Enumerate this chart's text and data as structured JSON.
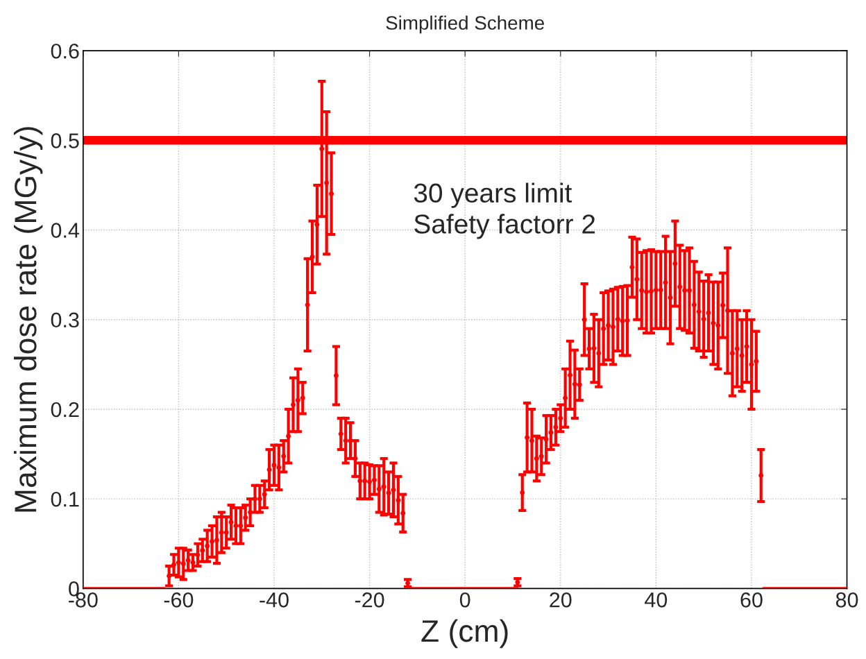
{
  "chart_data": {
    "type": "scatter",
    "title": "Simplified Scheme",
    "xlabel": "Z (cm)",
    "ylabel": "Maximum dose rate (MGy/y)",
    "xlim": [
      -80,
      80
    ],
    "xticks": [
      -80,
      -60,
      -40,
      -20,
      0,
      20,
      40,
      60,
      80
    ],
    "ylim": [
      0,
      0.6
    ],
    "yticks": [
      0,
      0.1,
      0.2,
      0.3,
      0.4,
      0.5,
      0.6
    ],
    "grid": true,
    "marker": "none",
    "series": [
      {
        "color": "#ff0000",
        "x": [
          -62,
          -61,
          -60,
          -59,
          -58,
          -57,
          -56,
          -55,
          -54,
          -53,
          -52,
          -51,
          -50,
          -49,
          -48,
          -47,
          -46,
          -45,
          -44,
          -43,
          -42,
          -41,
          -40,
          -39,
          -38,
          -37,
          -36,
          -35,
          -34,
          -33,
          -32,
          -31,
          -30,
          -29,
          -28,
          -27,
          -26,
          -25,
          -24,
          -23,
          -22,
          -21,
          -20,
          -19,
          -18,
          -17,
          -16,
          -15,
          -14,
          -13,
          -12,
          11,
          12,
          13,
          14,
          15,
          16,
          17,
          18,
          19,
          20,
          21,
          22,
          23,
          24,
          25,
          26,
          27,
          28,
          29,
          30,
          31,
          32,
          33,
          34,
          35,
          36,
          37,
          38,
          39,
          40,
          41,
          42,
          43,
          44,
          45,
          46,
          47,
          48,
          49,
          50,
          51,
          52,
          53,
          54,
          55,
          56,
          57,
          58,
          59,
          60,
          61,
          62
        ],
        "values": [
          0.014,
          0.0265,
          0.029,
          0.0275,
          0.0315,
          0.029,
          0.0375,
          0.0425,
          0.0475,
          0.0525,
          0.054,
          0.0625,
          0.0625,
          0.074,
          0.07,
          0.07,
          0.079,
          0.085,
          0.1,
          0.1,
          0.105,
          0.1325,
          0.1375,
          0.135,
          0.1475,
          0.17,
          0.205,
          0.21,
          0.2125,
          0.3165,
          0.37,
          0.406,
          0.4905,
          0.4525,
          0.4405,
          0.2375,
          0.1725,
          0.165,
          0.165,
          0.145,
          0.12,
          0.12,
          0.119,
          0.121,
          0.111,
          0.1135,
          0.1065,
          0.11,
          0.0985,
          0.084,
          0.006,
          0.007,
          0.107,
          0.1685,
          0.165,
          0.145,
          0.1475,
          0.1665,
          0.174,
          0.18,
          0.19,
          0.2125,
          0.238,
          0.228,
          0.2275,
          0.3,
          0.2675,
          0.268,
          0.2625,
          0.29,
          0.2935,
          0.292,
          0.3005,
          0.2985,
          0.299,
          0.3585,
          0.345,
          0.3325,
          0.331,
          0.3315,
          0.333,
          0.333,
          0.3415,
          0.3245,
          0.3625,
          0.3365,
          0.3325,
          0.3325,
          0.3165,
          0.309,
          0.3005,
          0.3075,
          0.296,
          0.2935,
          0.316,
          0.31,
          0.2625,
          0.2675,
          0.26,
          0.27,
          0.25,
          0.2535,
          0.126
        ],
        "errors": [
          0.011,
          0.0115,
          0.016,
          0.0175,
          0.0115,
          0.009,
          0.0125,
          0.0125,
          0.0175,
          0.0175,
          0.026,
          0.0225,
          0.0175,
          0.019,
          0.02,
          0.02,
          0.014,
          0.015,
          0.015,
          0.015,
          0.015,
          0.0225,
          0.0225,
          0.025,
          0.0175,
          0.03,
          0.03,
          0.035,
          0.0175,
          0.0515,
          0.04,
          0.044,
          0.0755,
          0.0795,
          0.0455,
          0.0325,
          0.0175,
          0.025,
          0.02,
          0.02,
          0.02,
          0.02,
          0.019,
          0.016,
          0.026,
          0.0315,
          0.0235,
          0.03,
          0.0265,
          0.021,
          0.004,
          0.004,
          0.02,
          0.0385,
          0.035,
          0.025,
          0.0205,
          0.0265,
          0.019,
          0.02,
          0.015,
          0.0325,
          0.038,
          0.038,
          0.0175,
          0.04,
          0.0225,
          0.038,
          0.0375,
          0.04,
          0.0385,
          0.042,
          0.0355,
          0.0385,
          0.039,
          0.0335,
          0.045,
          0.0425,
          0.046,
          0.0465,
          0.043,
          0.043,
          0.0515,
          0.0515,
          0.0475,
          0.0465,
          0.0445,
          0.0475,
          0.0485,
          0.044,
          0.0425,
          0.0425,
          0.046,
          0.0485,
          0.036,
          0.07,
          0.0475,
          0.0425,
          0.04,
          0.04,
          0.05,
          0.0335,
          0.029
        ]
      },
      {
        "type": "line",
        "color": "#ff0000",
        "x": [
          -80,
          -63,
          -62,
          -12,
          11,
          12,
          62.5,
          80
        ],
        "values": [
          0,
          0,
          null,
          0,
          0,
          null,
          0,
          0
        ]
      }
    ],
    "ref_lines": [
      {
        "axis": "y",
        "value": 0.5,
        "color": "#ff0000"
      }
    ],
    "annotations": [
      "30 years limit\nSafety factorr 2"
    ]
  }
}
